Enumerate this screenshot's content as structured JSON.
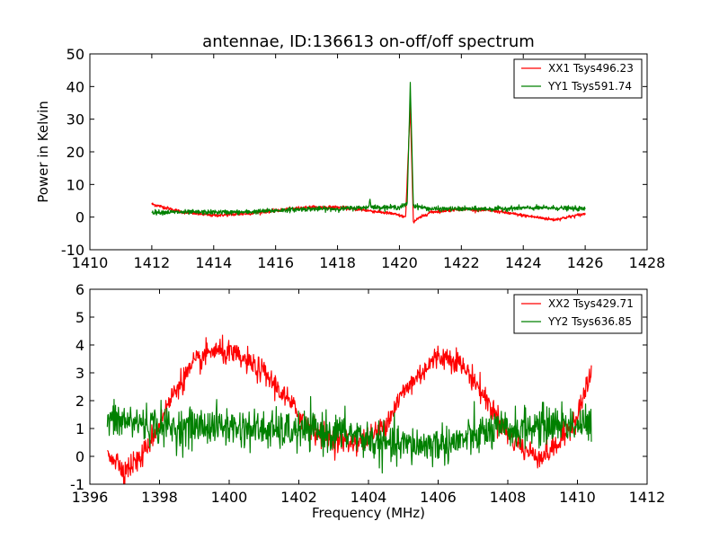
{
  "figure": {
    "title": "antennae, ID:136613 on-off/off spectrum",
    "background": "#ffffff"
  },
  "chart_data": [
    {
      "type": "line",
      "title": "antennae, ID:136613 on-off/off spectrum",
      "xlabel": "",
      "ylabel": "Power in Kelvin",
      "xlim": [
        1410,
        1428
      ],
      "ylim": [
        -10,
        50
      ],
      "xticks": [
        1410,
        1412,
        1414,
        1416,
        1418,
        1420,
        1422,
        1424,
        1426,
        1428
      ],
      "yticks": [
        -10,
        0,
        10,
        20,
        30,
        40,
        50
      ],
      "grid": false,
      "legend": "top-right",
      "series": [
        {
          "name": "XX1 Tsys496.23",
          "color": "#ff0000",
          "x_range": [
            1412.0,
            1426.0
          ],
          "x": [
            1412.0,
            1413.0,
            1414.0,
            1415.0,
            1416.0,
            1417.0,
            1418.0,
            1419.0,
            1419.8,
            1420.2,
            1420.35,
            1420.45,
            1420.6,
            1421.0,
            1422.0,
            1423.0,
            1424.0,
            1425.0,
            1426.0
          ],
          "values": [
            4.0,
            1.5,
            0.5,
            1.0,
            2.0,
            3.0,
            3.0,
            2.0,
            1.0,
            0.0,
            34.0,
            -1.5,
            -0.5,
            1.5,
            2.5,
            2.0,
            0.5,
            -0.8,
            1.0
          ]
        },
        {
          "name": "YY1 Tsys591.74",
          "color": "#008000",
          "x_range": [
            1412.0,
            1426.0
          ],
          "x": [
            1412.0,
            1413.0,
            1414.0,
            1415.0,
            1416.0,
            1417.0,
            1418.0,
            1419.0,
            1419.05,
            1419.1,
            1420.0,
            1420.25,
            1420.35,
            1420.45,
            1421.0,
            1422.0,
            1423.0,
            1424.0,
            1425.0,
            1426.0
          ],
          "values": [
            1.5,
            1.5,
            1.5,
            1.5,
            2.0,
            2.5,
            2.5,
            3.0,
            5.5,
            3.0,
            3.0,
            4.0,
            41.0,
            3.5,
            2.5,
            2.5,
            2.5,
            2.8,
            2.8,
            2.5
          ]
        }
      ]
    },
    {
      "type": "line",
      "title": "",
      "xlabel": "Frequency (MHz)",
      "ylabel": "",
      "xlim": [
        1396,
        1412
      ],
      "ylim": [
        -1,
        6
      ],
      "xticks": [
        1396,
        1398,
        1400,
        1402,
        1404,
        1406,
        1408,
        1410,
        1412
      ],
      "yticks": [
        -1,
        0,
        1,
        2,
        3,
        4,
        5,
        6
      ],
      "grid": false,
      "legend": "top-right",
      "series": [
        {
          "name": "XX2 Tsys429.71",
          "color": "#ff0000",
          "x_range": [
            1396.5,
            1410.4
          ],
          "x": [
            1396.5,
            1397.0,
            1397.5,
            1398.0,
            1398.5,
            1399.0,
            1399.5,
            1400.0,
            1400.5,
            1401.0,
            1401.5,
            1402.0,
            1402.5,
            1403.0,
            1403.5,
            1404.0,
            1404.5,
            1405.0,
            1405.5,
            1406.0,
            1406.5,
            1407.0,
            1407.5,
            1408.0,
            1408.5,
            1409.0,
            1409.5,
            1410.0,
            1410.4
          ],
          "values": [
            0.2,
            -0.5,
            0.0,
            1.2,
            2.5,
            3.3,
            3.8,
            3.7,
            3.4,
            3.0,
            2.3,
            1.5,
            0.9,
            0.6,
            0.5,
            0.6,
            1.2,
            2.3,
            3.0,
            3.6,
            3.5,
            2.8,
            1.8,
            0.8,
            0.2,
            0.0,
            0.5,
            1.5,
            3.0
          ]
        },
        {
          "name": "YY2 Tsys636.85",
          "color": "#008000",
          "x_range": [
            1396.5,
            1410.4
          ],
          "x": [
            1396.5,
            1397.5,
            1398.5,
            1399.5,
            1400.5,
            1401.5,
            1402.5,
            1403.5,
            1404.5,
            1405.5,
            1406.5,
            1407.5,
            1408.5,
            1409.5,
            1410.4
          ],
          "values": [
            1.3,
            1.2,
            1.0,
            1.1,
            1.0,
            0.9,
            0.9,
            0.8,
            0.4,
            0.4,
            0.5,
            0.9,
            1.0,
            1.2,
            1.1
          ]
        }
      ]
    }
  ]
}
